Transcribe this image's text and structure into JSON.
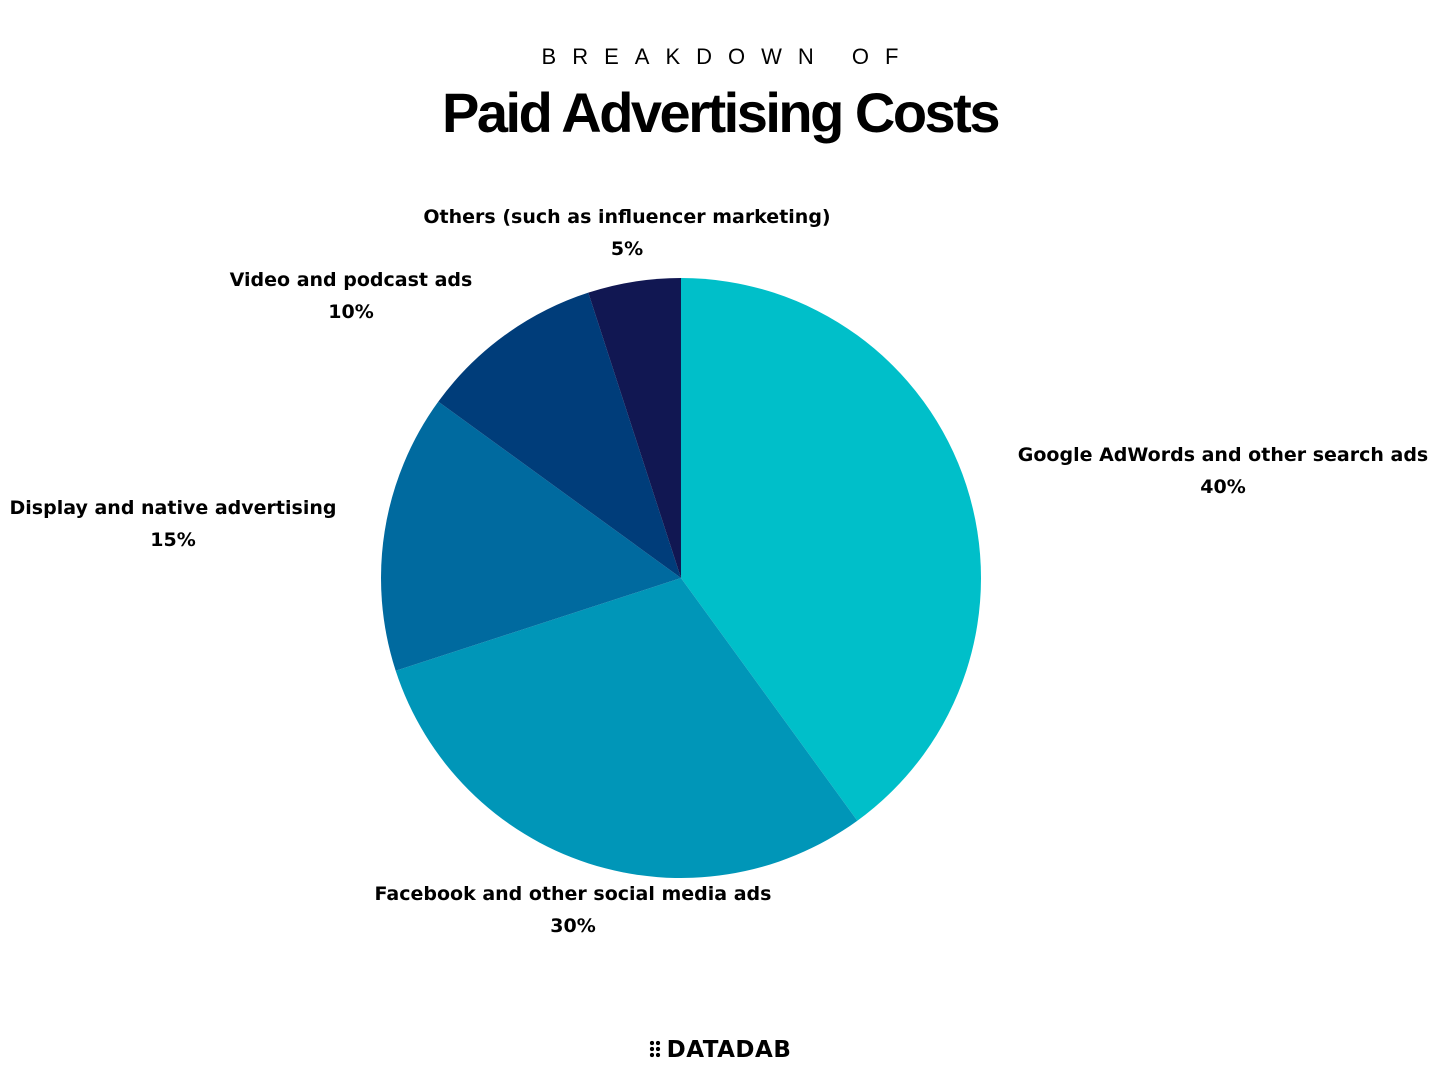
{
  "chart_data": {
    "type": "pie",
    "supertitle": "BREAKDOWN OF",
    "title": "Paid Advertising Costs",
    "slices": [
      {
        "label": "Google AdWords and other search ads",
        "value": 40,
        "value_label": "40%",
        "color": "#00bfc9"
      },
      {
        "label": "Facebook and other social media ads",
        "value": 30,
        "value_label": "30%",
        "color": "#0096b8"
      },
      {
        "label": "Display and native advertising",
        "value": 15,
        "value_label": "15%",
        "color": "#006a9f"
      },
      {
        "label": "Video and podcast ads",
        "value": 10,
        "value_label": "10%",
        "color": "#003d7a"
      },
      {
        "label": "Others (such as influencer marketing)",
        "value": 5,
        "value_label": "5%",
        "color": "#111752"
      }
    ],
    "start_angle": "12 o'clock",
    "direction": "clockwise",
    "legend": "none"
  },
  "brand": {
    "name": "DATADAB"
  }
}
